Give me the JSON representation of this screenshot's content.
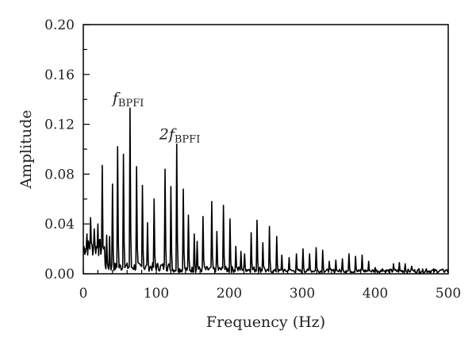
{
  "chart_data": {
    "type": "line",
    "xlabel": "Frequency (Hz)",
    "ylabel": "Amplitude",
    "xlim": [
      0,
      500
    ],
    "ylim": [
      0,
      0.2
    ],
    "x_ticks": [
      "0",
      "100",
      "200",
      "300",
      "400",
      "500"
    ],
    "y_ticks": [
      "0.00",
      "0.04",
      "0.08",
      "0.12",
      "0.16",
      "0.20"
    ],
    "grid": false,
    "line_color": "#000000",
    "annotations": [
      {
        "main": "f",
        "sub": "BPFI",
        "x": 64,
        "y": 0.133
      },
      {
        "main": "2f",
        "sub": "BPFI",
        "x": 128,
        "y": 0.104
      }
    ],
    "peaks": [
      [
        5,
        0.032
      ],
      [
        10,
        0.045
      ],
      [
        15,
        0.036
      ],
      [
        20,
        0.04
      ],
      [
        26,
        0.087
      ],
      [
        32,
        0.031
      ],
      [
        36,
        0.03
      ],
      [
        40,
        0.072
      ],
      [
        47,
        0.102
      ],
      [
        55,
        0.096
      ],
      [
        64,
        0.133
      ],
      [
        73,
        0.086
      ],
      [
        81,
        0.071
      ],
      [
        88,
        0.041
      ],
      [
        97,
        0.06
      ],
      [
        112,
        0.084
      ],
      [
        120,
        0.07
      ],
      [
        128,
        0.104
      ],
      [
        137,
        0.068
      ],
      [
        144,
        0.047
      ],
      [
        152,
        0.032
      ],
      [
        156,
        0.026
      ],
      [
        164,
        0.046
      ],
      [
        176,
        0.058
      ],
      [
        183,
        0.034
      ],
      [
        192,
        0.055
      ],
      [
        201,
        0.044
      ],
      [
        209,
        0.022
      ],
      [
        216,
        0.018
      ],
      [
        221,
        0.016
      ],
      [
        230,
        0.033
      ],
      [
        238,
        0.043
      ],
      [
        246,
        0.025
      ],
      [
        255,
        0.038
      ],
      [
        265,
        0.03
      ],
      [
        272,
        0.015
      ],
      [
        282,
        0.013
      ],
      [
        292,
        0.016
      ],
      [
        301,
        0.02
      ],
      [
        310,
        0.016
      ],
      [
        319,
        0.021
      ],
      [
        328,
        0.019
      ],
      [
        337,
        0.01
      ],
      [
        346,
        0.011
      ],
      [
        355,
        0.012
      ],
      [
        364,
        0.016
      ],
      [
        373,
        0.014
      ],
      [
        382,
        0.015
      ],
      [
        391,
        0.01
      ],
      [
        400,
        0.005
      ],
      [
        410,
        0.004
      ],
      [
        425,
        0.008
      ],
      [
        433,
        0.009
      ],
      [
        441,
        0.008
      ],
      [
        450,
        0.006
      ],
      [
        460,
        0.004
      ],
      [
        470,
        0.004
      ],
      [
        480,
        0.004
      ],
      [
        490,
        0.003
      ],
      [
        497,
        0.003
      ]
    ]
  }
}
